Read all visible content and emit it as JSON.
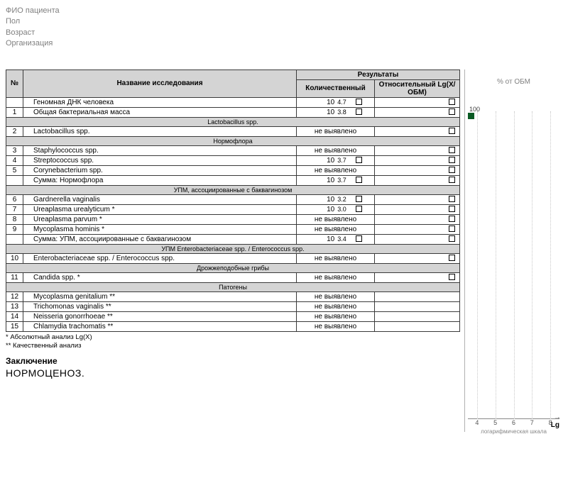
{
  "patient": {
    "fio": "ФИО пациента",
    "sex": "Пол",
    "age": "Возраст",
    "org": "Организация"
  },
  "headers": {
    "num": "№",
    "name": "Название исследования",
    "results": "Результаты",
    "quant": "Количественный",
    "rel": "Относительный Lg(X/ОБМ)"
  },
  "not_detected": "не выявлено",
  "sections": [
    {
      "title": null,
      "rows": [
        {
          "num": "",
          "name": "Геномная ДНК человека",
          "quant_base": "10",
          "quant_exp": "4.7",
          "rel_box": true
        },
        {
          "num": "1",
          "name": "Общая бактериальная масса",
          "quant_base": "10",
          "quant_exp": "3.8",
          "rel_box": true
        }
      ]
    },
    {
      "title": "Lactobacillus spp.",
      "rows": [
        {
          "num": "2",
          "name": "Lactobacillus spp.",
          "quant_text": "не выявлено",
          "rel_box": true
        }
      ]
    },
    {
      "title": "Нормофлора",
      "rows": [
        {
          "num": "3",
          "name": "Staphylococcus spp.",
          "quant_text": "не выявлено",
          "rel_box": true
        },
        {
          "num": "4",
          "name": "Streptococcus spp.",
          "quant_base": "10",
          "quant_exp": "3.7",
          "rel_box": true
        },
        {
          "num": "5",
          "name": "Corynebacterium spp.",
          "quant_text": "не выявлено",
          "rel_box": true
        },
        {
          "num": "",
          "name": "Сумма: Нормофлора",
          "quant_base": "10",
          "quant_exp": "3.7",
          "rel_box": true
        }
      ]
    },
    {
      "title": "УПМ, ассоциированные с баквагинозом",
      "rows": [
        {
          "num": "6",
          "name": "Gardnerella vaginalis",
          "quant_base": "10",
          "quant_exp": "3.2",
          "rel_box": true
        },
        {
          "num": "7",
          "name": "Ureaplasma urealyticum *",
          "quant_base": "10",
          "quant_exp": "3.0",
          "rel_box": true
        },
        {
          "num": "8",
          "name": "Ureaplasma parvum *",
          "quant_text": "не выявлено",
          "rel_box": true
        },
        {
          "num": "9",
          "name": "Mycoplasma hominis *",
          "quant_text": "не выявлено",
          "rel_box": true
        },
        {
          "num": "",
          "name": "Сумма: УПМ, ассоциированные с баквагинозом",
          "quant_base": "10",
          "quant_exp": "3.4",
          "rel_box": true
        }
      ]
    },
    {
      "title": "УПМ Enterobacteriaceae spp. / Enterococcus spp.",
      "rows": [
        {
          "num": "10",
          "name": "Enterobacteriaceae spp. / Enterococcus spp.",
          "quant_text": "не выявлено",
          "rel_box": true
        }
      ]
    },
    {
      "title": "Дрожжеподобные грибы",
      "rows": [
        {
          "num": "11",
          "name": "Candida spp. *",
          "quant_text": "не выявлено",
          "rel_box": true
        }
      ]
    },
    {
      "title": "Патогены",
      "rows": [
        {
          "num": "12",
          "name": "Mycoplasma genitalium **",
          "quant_text": "не выявлено",
          "rel_box": false
        },
        {
          "num": "13",
          "name": "Trichomonas vaginalis **",
          "quant_text": "не выявлено",
          "rel_box": false
        },
        {
          "num": "14",
          "name": "Neisseria gonorrhoeae **",
          "quant_text": "не выявлено",
          "rel_box": false
        },
        {
          "num": "15",
          "name": "Chlamydia trachomatis **",
          "quant_text": "не выявлено",
          "rel_box": false
        }
      ]
    }
  ],
  "footnotes": {
    "f1": "*  Абсолютный анализ Lg(X)",
    "f2": "** Качественный анализ"
  },
  "conclusion": {
    "label": "Заключение",
    "value": "НОРМОЦЕНОЗ."
  },
  "chart": {
    "title": "% от ОБМ",
    "top_label": "100",
    "bar_color": "#0a5a23",
    "bar_left_pct": 0,
    "bar_width_pct": 7,
    "ticks": [
      4,
      5,
      6,
      7,
      8
    ],
    "x_min": 3.5,
    "x_max": 8.5,
    "lg_label": "Lg",
    "subscale": "логарифмическая шкала"
  }
}
